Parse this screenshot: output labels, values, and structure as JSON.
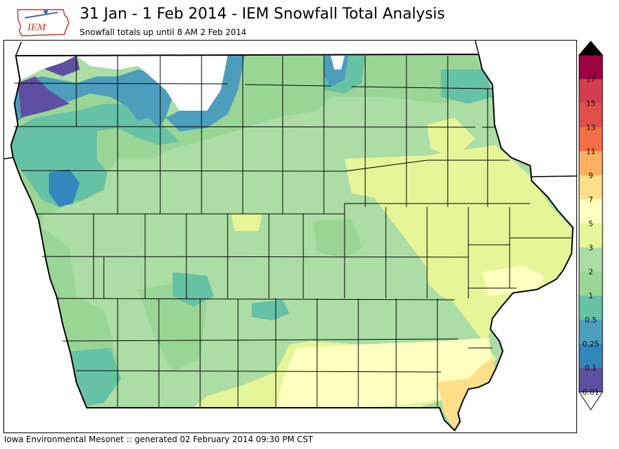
{
  "header": {
    "title": "31 Jan - 1 Feb 2014 - IEM Snowfall Total Analysis",
    "subtitle": "Snowfall totals up until 8 AM 2 Feb 2014"
  },
  "logo": {
    "text": "IEM"
  },
  "footer": {
    "text": "Iowa Environmental Mesonet :: generated 02 February 2014 09:30 PM CST"
  },
  "legend": {
    "labels": [
      "0.01",
      "0.1",
      "0.25",
      "0.5",
      "1",
      "2",
      "3",
      "5",
      "7",
      "9",
      "11",
      "13",
      "15",
      "17"
    ],
    "colors": [
      "#5e4fa2",
      "#3288bd",
      "#4d9ebc",
      "#66c2a5",
      "#99d594",
      "#abdda4",
      "#e6f598",
      "#ffffbf",
      "#fee08b",
      "#fdae61",
      "#f46d43",
      "#e04f4a",
      "#d53e4f",
      "#9e0142"
    ],
    "extend_over": "#000000",
    "extend_under": "#ffffff"
  },
  "map": {
    "region": "Iowa",
    "fill_colors": {
      "no_snow": "#ffffff",
      "lt_01": "#5e4fa2",
      "lt_025": "#3288bd",
      "lt_05": "#4d9ebc",
      "lt_1": "#66c2a5",
      "lt_2": "#99d594",
      "lt_3": "#abdda4",
      "lt_5": "#e6f598",
      "lt_7": "#ffffbf",
      "lt_9": "#fee08b"
    }
  }
}
